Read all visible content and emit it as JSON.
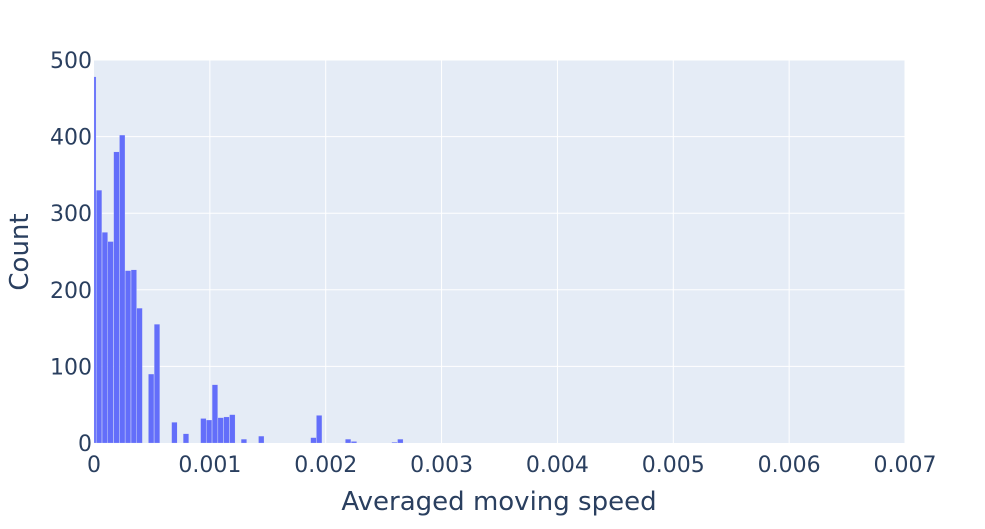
{
  "chart_data": {
    "type": "histogram",
    "title": "",
    "xlabel": "Averaged moving speed",
    "ylabel": "Count",
    "xlim": [
      0,
      0.007
    ],
    "ylim": [
      0,
      500
    ],
    "grid": true,
    "x_ticks": [
      "0",
      "0.001",
      "0.002",
      "0.003",
      "0.004",
      "0.005",
      "0.006",
      "0.007"
    ],
    "y_ticks": [
      "0",
      "100",
      "200",
      "300",
      "400",
      "500"
    ],
    "bin_start": -3e-05,
    "bin_size": 5e-05,
    "counts": [
      478,
      330,
      275,
      263,
      380,
      402,
      225,
      226,
      176,
      0,
      90,
      155,
      0,
      0,
      27,
      0,
      12,
      0,
      0,
      32,
      30,
      76,
      33,
      34,
      37,
      0,
      5,
      0,
      0,
      9,
      0,
      0,
      0,
      0,
      0,
      0,
      0,
      0,
      7,
      36,
      0,
      0,
      0,
      0,
      5,
      2,
      0,
      0,
      0,
      0,
      0,
      0,
      1,
      5
    ],
    "colors": {
      "bar": "#636EFA",
      "plot_bg": "#E5ECF6",
      "grid": "#FFFFFF",
      "text": "#2a3f5f"
    }
  }
}
